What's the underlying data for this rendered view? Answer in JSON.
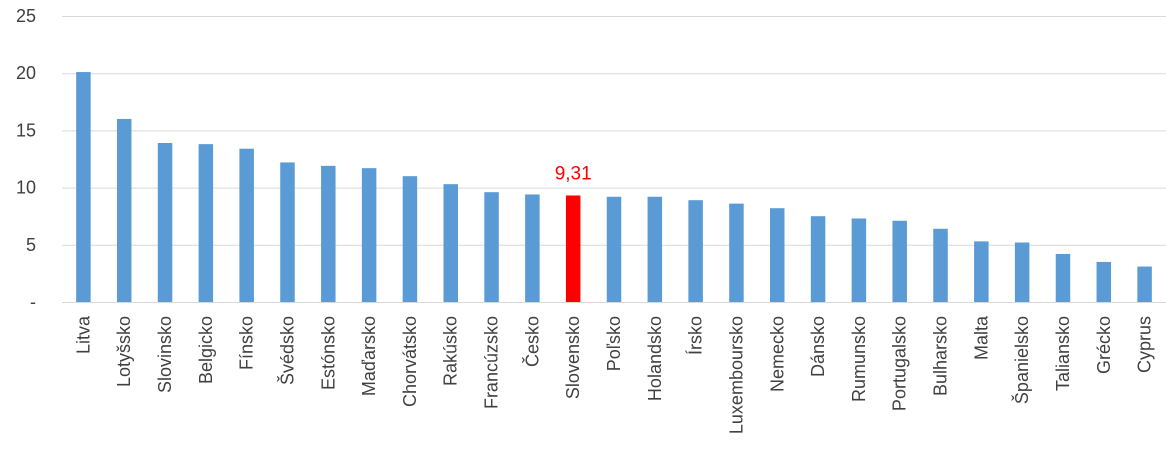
{
  "chart_data": {
    "type": "bar",
    "title": "",
    "xlabel": "",
    "ylabel": "",
    "ylim": [
      0,
      25
    ],
    "yticks": [
      0,
      5,
      10,
      15,
      20,
      25
    ],
    "ytick_labels": [
      "-",
      "5",
      "10",
      "15",
      "20",
      "25"
    ],
    "grid": true,
    "categories": [
      "Litva",
      "Lotyšsko",
      "Slovinsko",
      "Belgicko",
      "Fínsko",
      "Švédsko",
      "Estónsko",
      "Maďarsko",
      "Chorvátsko",
      "Rakúsko",
      "Francúzsko",
      "Česko",
      "Slovensko",
      "Poľsko",
      "Holandsko",
      "Írsko",
      "Luxemboursko",
      "Nemecko",
      "Dánsko",
      "Rumunsko",
      "Portugalsko",
      "Bulharsko",
      "Malta",
      "Španielsko",
      "Taliansko",
      "Grécko",
      "Cyprus"
    ],
    "values": [
      20.1,
      16.0,
      13.9,
      13.8,
      13.4,
      12.2,
      11.9,
      11.7,
      11.0,
      10.3,
      9.6,
      9.4,
      9.31,
      9.2,
      9.2,
      8.9,
      8.6,
      8.2,
      7.5,
      7.3,
      7.1,
      6.4,
      5.3,
      5.2,
      4.2,
      3.5,
      3.1
    ],
    "highlight_index": 12,
    "data_labels": [
      {
        "index": 12,
        "text": "9,31"
      }
    ],
    "colors": {
      "bar": "#5b9bd5",
      "highlight": "#ff0000",
      "grid": "#d9d9d9",
      "text": "#404040",
      "data_label": "#ff0000"
    }
  }
}
